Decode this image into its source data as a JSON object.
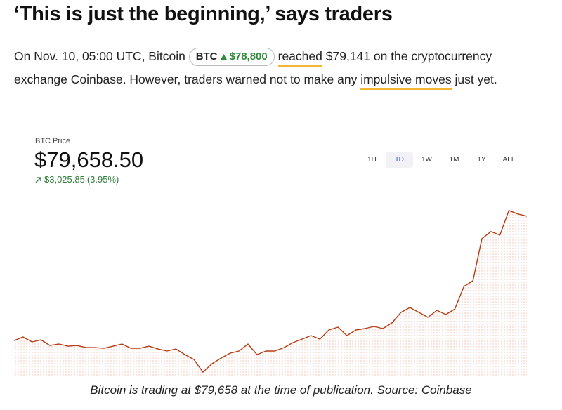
{
  "article": {
    "title": "‘This is just the beginning,’ says traders",
    "paragraph": {
      "before": "On Nov. 10, 05:00 UTC, Bitcoin",
      "ticker": "BTC",
      "ticker_price": "$78,800",
      "link1": "reached",
      "middle": "$79,141 on the cryptocurrency exchange Coinbase. However, traders warned not to make any",
      "link2": "impulsive moves",
      "after": "just yet."
    },
    "caption": "Bitcoin is trading at $79,658 at the time of publication. Source: Coinbase"
  },
  "widget": {
    "label": "BTC Price",
    "price": "$79,658.50",
    "change": "$3,025.85",
    "change_pct": "(3.95%)",
    "ranges": [
      "1H",
      "1D",
      "1W",
      "1M",
      "1Y",
      "ALL"
    ],
    "selected_range": 1
  },
  "chart_data": {
    "type": "line",
    "color": "#b83a12",
    "ylim": [
      75780,
      80050
    ],
    "values": [
      76633,
      76719,
      76599,
      76650,
      76513,
      76548,
      76496,
      76513,
      76462,
      76462,
      76445,
      76496,
      76548,
      76445,
      76445,
      76496,
      76428,
      76377,
      76428,
      76291,
      76171,
      75863,
      76069,
      76206,
      76325,
      76377,
      76548,
      76291,
      76377,
      76377,
      76462,
      76582,
      76667,
      76753,
      76667,
      76890,
      76958,
      76753,
      76890,
      76924,
      76975,
      76924,
      77061,
      77317,
      77437,
      77317,
      77197,
      77368,
      77266,
      77403,
      77950,
      78087,
      79113,
      79284,
      79198,
      79797,
      79711,
      79659
    ]
  }
}
